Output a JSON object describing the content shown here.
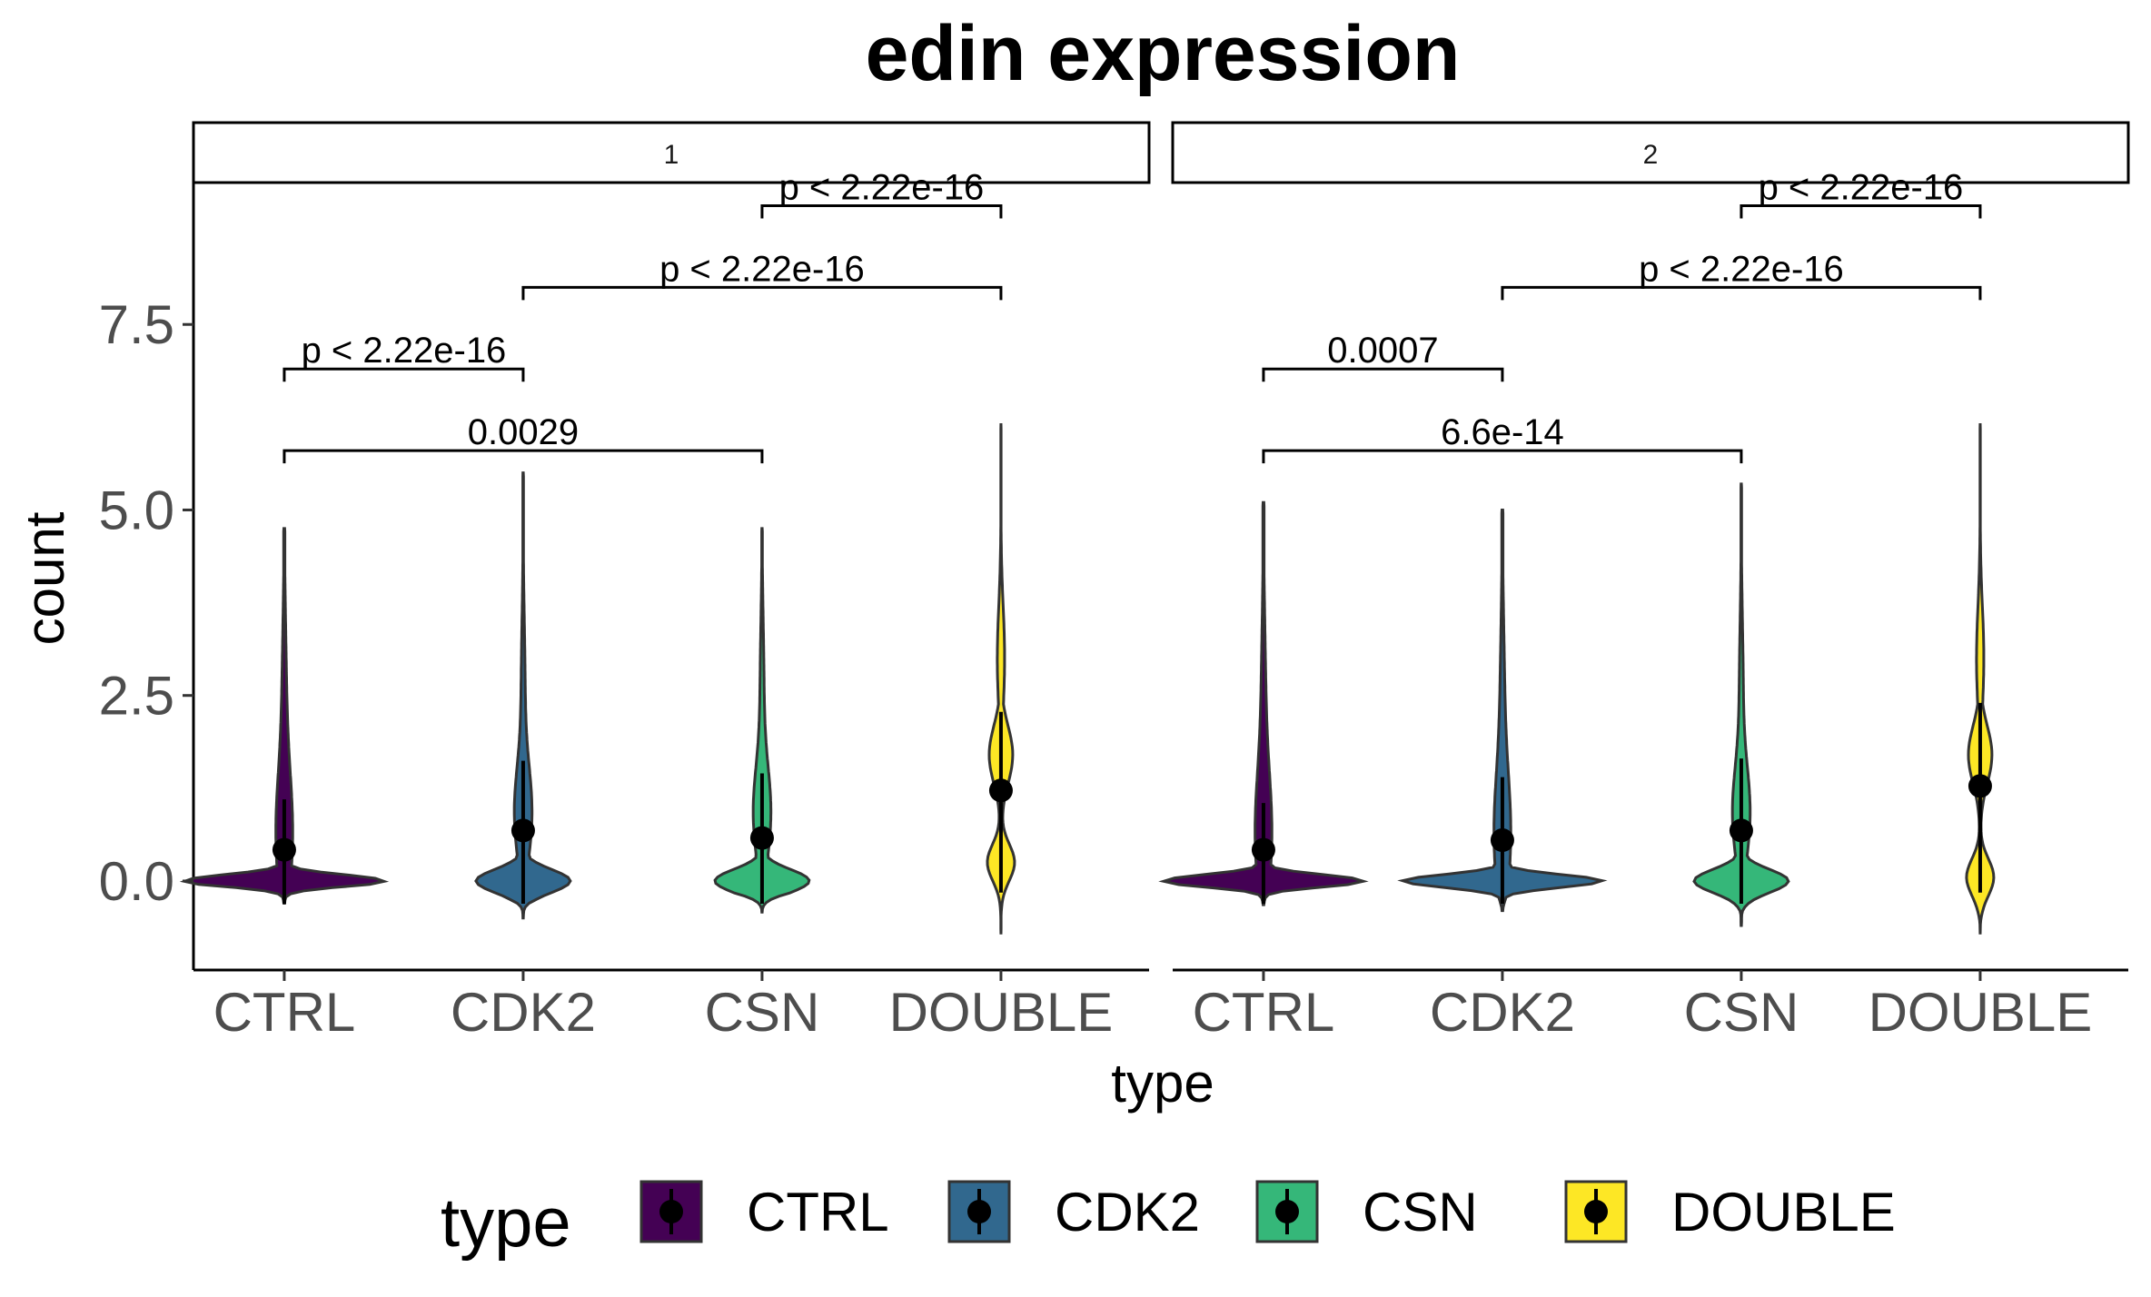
{
  "colors": {
    "CTRL": "#440154",
    "CDK2": "#31688E",
    "CSN": "#35B779",
    "DOUBLE": "#FDE725",
    "outline": "#333333",
    "point": "#000000"
  },
  "chart_data": {
    "type": "violin",
    "title": "edin expression",
    "xlabel": "type",
    "ylabel": "count",
    "ylim": [
      -1.2,
      9.4
    ],
    "yticks": [
      0.0,
      2.5,
      5.0,
      7.5
    ],
    "ytick_labels": [
      "0.0",
      "2.5",
      "5.0",
      "7.5"
    ],
    "categories": [
      "CTRL",
      "CDK2",
      "CSN",
      "DOUBLE"
    ],
    "legend": {
      "title": "type",
      "position": "bottom",
      "entries": [
        "CTRL",
        "CDK2",
        "CSN",
        "DOUBLE"
      ]
    },
    "grid": false,
    "panels": [
      {
        "label": "1",
        "groups": [
          {
            "name": "CTRL",
            "mean": 0.42,
            "ci": [
              0.0,
              1.1
            ],
            "min": -0.3,
            "max": 4.75,
            "peak": 0.0,
            "shape": "skinny"
          },
          {
            "name": "CDK2",
            "mean": 0.68,
            "ci": [
              0.0,
              1.62
            ],
            "min": -0.5,
            "max": 5.5,
            "peak": 0.0,
            "shape": "medium"
          },
          {
            "name": "CSN",
            "mean": 0.58,
            "ci": [
              0.0,
              1.45
            ],
            "min": -0.42,
            "max": 4.75,
            "peak": 0.0,
            "shape": "medium"
          },
          {
            "name": "DOUBLE",
            "mean": 1.22,
            "ci": [
              0.15,
              2.28
            ],
            "min": -0.7,
            "max": 6.15,
            "peak": 0.2,
            "shape": "double"
          }
        ],
        "comparisons": [
          {
            "from": "CSN",
            "to": "DOUBLE",
            "label": "p < 2.22e-16",
            "y": 9.1
          },
          {
            "from": "CDK2",
            "to": "DOUBLE",
            "label": "p < 2.22e-16",
            "y": 8.0
          },
          {
            "from": "CTRL",
            "to": "CDK2",
            "label": "p < 2.22e-16",
            "y": 6.9
          },
          {
            "from": "CTRL",
            "to": "CSN",
            "label": "0.0029",
            "y": 5.8
          }
        ]
      },
      {
        "label": "2",
        "groups": [
          {
            "name": "CTRL",
            "mean": 0.42,
            "ci": [
              0.0,
              1.05
            ],
            "min": -0.32,
            "max": 5.1,
            "peak": 0.0,
            "shape": "skinny"
          },
          {
            "name": "CDK2",
            "mean": 0.55,
            "ci": [
              0.0,
              1.4
            ],
            "min": -0.4,
            "max": 5.0,
            "peak": 0.0,
            "shape": "skinny"
          },
          {
            "name": "CSN",
            "mean": 0.68,
            "ci": [
              0.0,
              1.65
            ],
            "min": -0.6,
            "max": 5.35,
            "peak": 0.0,
            "shape": "medium"
          },
          {
            "name": "DOUBLE",
            "mean": 1.28,
            "ci": [
              0.15,
              2.4
            ],
            "min": -0.7,
            "max": 6.15,
            "peak": 0.0,
            "shape": "double"
          }
        ],
        "comparisons": [
          {
            "from": "CSN",
            "to": "DOUBLE",
            "label": "p < 2.22e-16",
            "y": 9.1
          },
          {
            "from": "CDK2",
            "to": "DOUBLE",
            "label": "p < 2.22e-16",
            "y": 8.0
          },
          {
            "from": "CTRL",
            "to": "CDK2",
            "label": "0.0007",
            "y": 6.9
          },
          {
            "from": "CTRL",
            "to": "CSN",
            "label": "6.6e-14",
            "y": 5.8
          }
        ]
      }
    ]
  }
}
